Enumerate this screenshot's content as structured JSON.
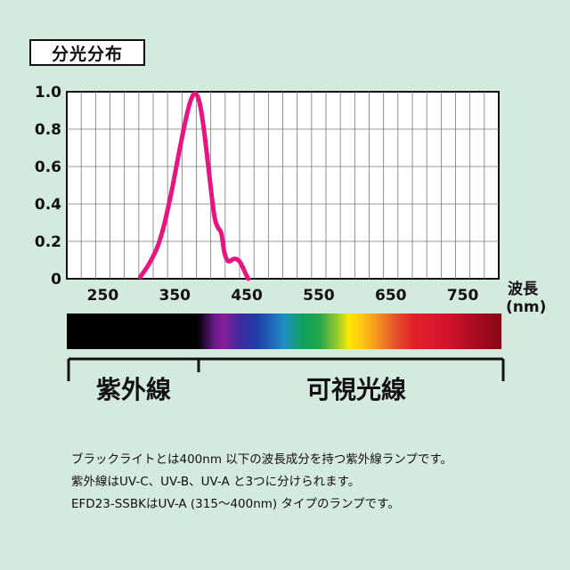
{
  "header": {
    "title": "分光分布"
  },
  "chart_data": {
    "type": "line",
    "title": "",
    "xlabel": "波長",
    "xunit": "(nm)",
    "ylabel": "",
    "xlim": [
      200,
      800
    ],
    "ylim": [
      0,
      1.0
    ],
    "x_ticks": [
      250,
      350,
      450,
      550,
      650,
      750
    ],
    "y_ticks": [
      0,
      0.2,
      0.4,
      0.6,
      0.8,
      1.0
    ],
    "y_tick_labels": [
      "0",
      "0.2",
      "0.4",
      "0.6",
      "0.8",
      "1.0"
    ],
    "grid": true,
    "line_color": "#e8147f",
    "series": [
      {
        "x": [
          302,
          315,
          330,
          345,
          355,
          365,
          372,
          378,
          384,
          390,
          398,
          405,
          410,
          415,
          418,
          422,
          426,
          432,
          440,
          448,
          452
        ],
        "y": [
          0.01,
          0.08,
          0.2,
          0.45,
          0.66,
          0.85,
          0.96,
          1.0,
          0.96,
          0.82,
          0.55,
          0.32,
          0.27,
          0.25,
          0.15,
          0.1,
          0.09,
          0.11,
          0.1,
          0.03,
          0.0
        ]
      }
    ]
  },
  "spectrum": {
    "uv_label": "紫外線",
    "visible_label": "可視光線"
  },
  "description": {
    "line1": "ブラックライトとは400nm 以下の波長成分を持つ紫外線ランプです。",
    "line2": "紫外線はUV-C、UV-B、UV-A と3つに分けられます。",
    "line3": "EFD23-SSBKはUV-A (315～400nm) タイプのランプです。"
  }
}
